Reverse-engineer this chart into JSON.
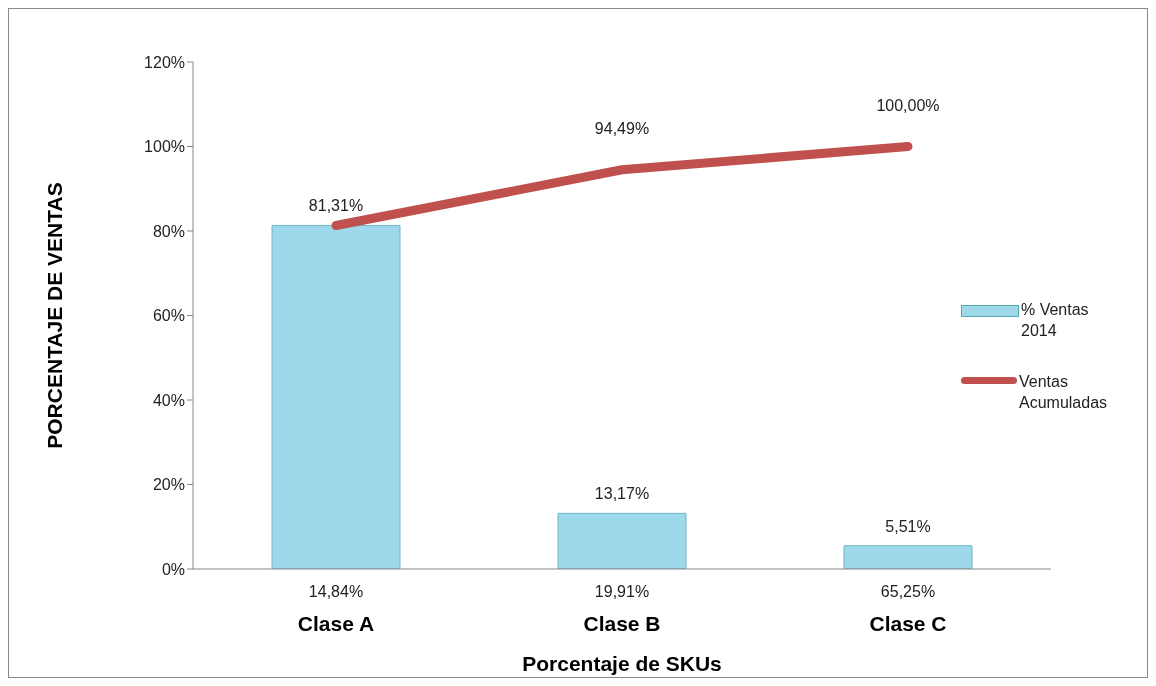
{
  "chart_data": {
    "type": "bar",
    "xlabel": "Porcentaje de SKUs",
    "ylabel": "PORCENTAJE DE VENTAS",
    "categories": [
      "Clase A",
      "Clase B",
      "Clase C"
    ],
    "series": [
      {
        "name": "% Ventas 2014",
        "color": "#9dd9ea",
        "values": [
          81.31,
          13.17,
          5.51
        ],
        "value_labels": [
          "81,31%",
          "13,17%",
          "5,51%"
        ]
      },
      {
        "name": "Ventas Acumuladas",
        "type": "line",
        "color": "#c0504d",
        "values": [
          81.31,
          94.49,
          100
        ],
        "value_labels": [
          null,
          "94,49%",
          "100,00%"
        ]
      }
    ],
    "annotations": [
      "14,84%",
      "19,91%",
      "65,25%"
    ],
    "ylim": [
      0,
      120
    ],
    "yticks": [
      {
        "value": 0,
        "label": "0%"
      },
      {
        "value": 20,
        "label": "20%"
      },
      {
        "value": 40,
        "label": "40%"
      },
      {
        "value": 60,
        "label": "60%"
      },
      {
        "value": 80,
        "label": "80%"
      },
      {
        "value": 100,
        "label": "100%"
      },
      {
        "value": 120,
        "label": "120%"
      }
    ],
    "grid": false,
    "legend": "right",
    "marker": "none",
    "line_style": "solid"
  }
}
